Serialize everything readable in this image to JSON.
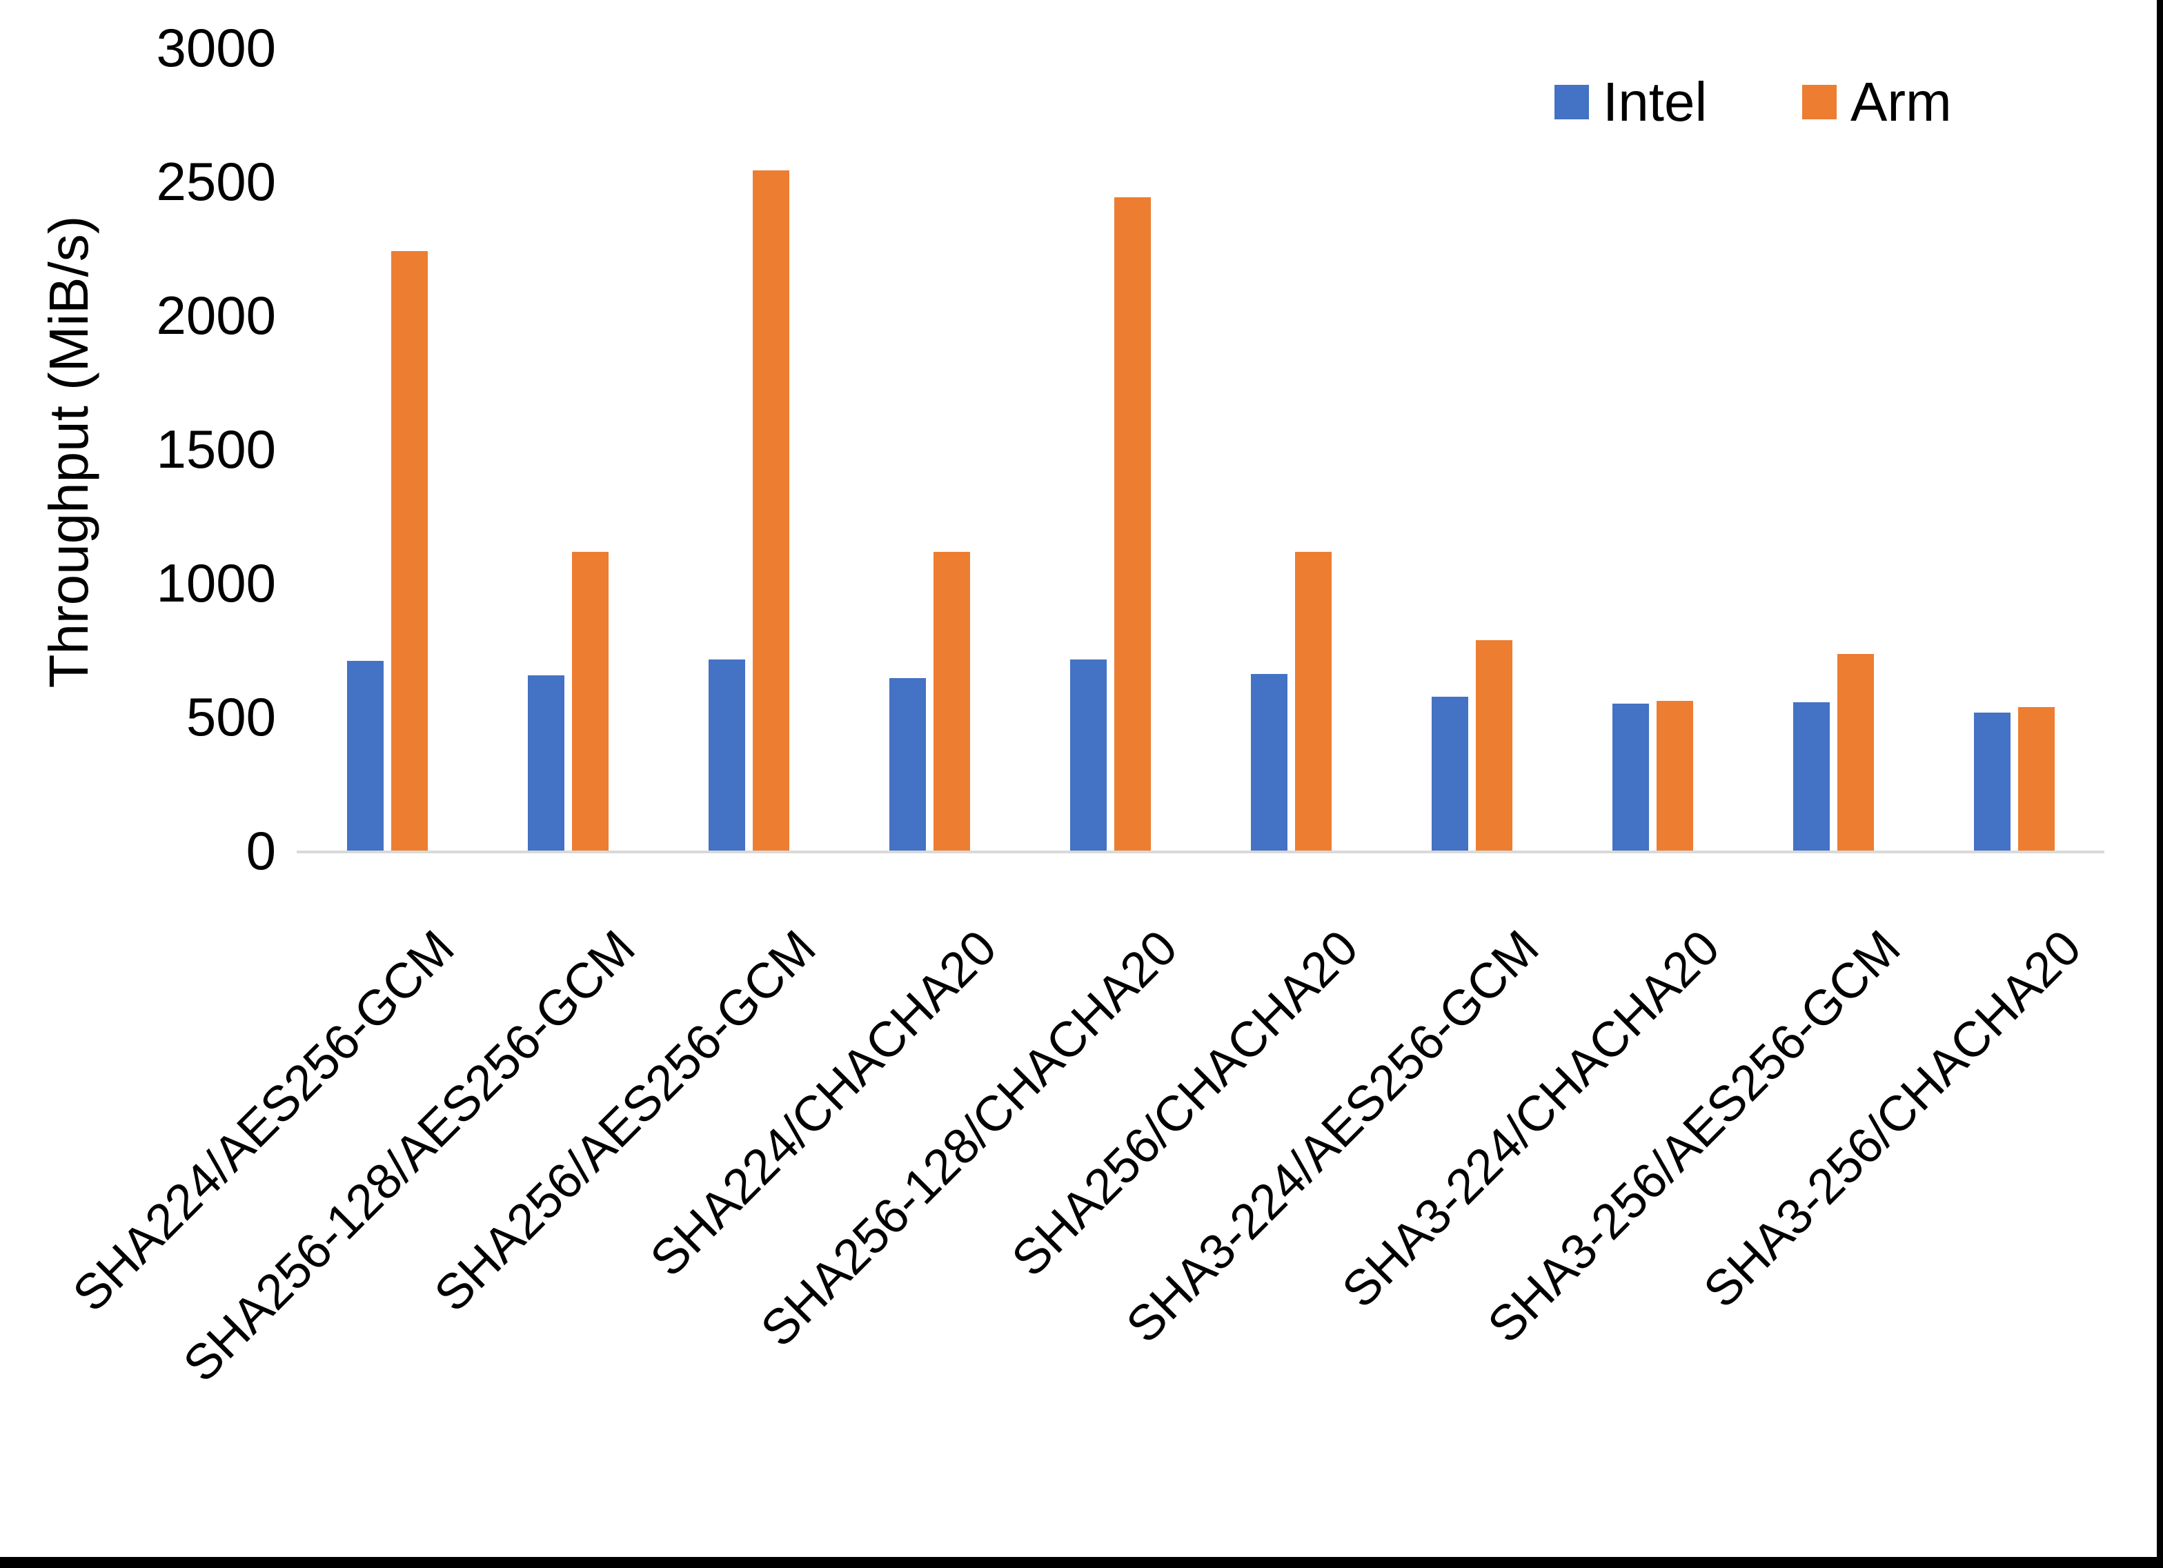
{
  "chart_data": {
    "type": "bar",
    "title": "",
    "ylabel": "Throughput (MiB/s)",
    "xlabel": "",
    "ylim": [
      0,
      3000
    ],
    "ytick_interval": 500,
    "yticks": [
      0,
      500,
      1000,
      1500,
      2000,
      2500,
      3000
    ],
    "grid": false,
    "legend_position": "top-right",
    "x_label_rotation_deg": -45,
    "axis_line_color": "#d9d9d9",
    "text_color": "#000000",
    "background_color": "#ffffff",
    "categories": [
      "SHA224/AES256-GCM",
      "SHA256-128/AES256-GCM",
      "SHA256/AES256-GCM",
      "SHA224/CHACHA20",
      "SHA256-128/CHACHA20",
      "SHA256/CHACHA20",
      "SHA3-224/AES256-GCM",
      "SHA3-224/CHACHA20",
      "SHA3-256/AES256-GCM",
      "SHA3-256/CHACHA20"
    ],
    "series": [
      {
        "name": "Intel",
        "color": "#4472C4",
        "values": [
          710,
          655,
          715,
          645,
          715,
          660,
          575,
          550,
          555,
          515
        ]
      },
      {
        "name": "Arm",
        "color": "#ED7D31",
        "values": [
          2240,
          1115,
          2540,
          1115,
          2440,
          1115,
          785,
          560,
          735,
          535
        ]
      }
    ]
  },
  "legend": {
    "items": [
      {
        "label": "Intel",
        "color": "#4472C4"
      },
      {
        "label": "Arm",
        "color": "#ED7D31"
      }
    ]
  },
  "window": {
    "background": "#ffffff",
    "edge_color": "#000000"
  }
}
